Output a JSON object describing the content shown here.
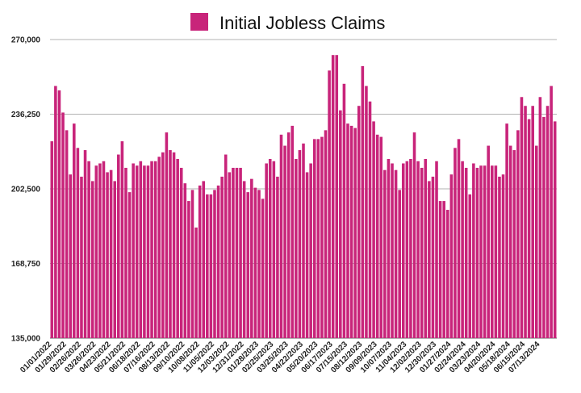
{
  "chart_data": {
    "type": "bar",
    "title": "Initial Jobless Claims",
    "legend": {
      "position": "top",
      "entries": [
        "Initial Jobless Claims"
      ]
    },
    "series": [
      {
        "name": "Initial Jobless Claims",
        "color": "#c8247a"
      }
    ],
    "ylim": [
      135000,
      270000
    ],
    "yticks": [
      "135,000",
      "168,750",
      "202,500",
      "236,250",
      "270,000"
    ],
    "ytick_values": [
      135000,
      168750,
      202500,
      236250,
      270000
    ],
    "grid": {
      "horizontal": true,
      "vertical": false
    },
    "x_tick_labels": [
      {
        "index": 0,
        "label": "01/01/2022"
      },
      {
        "index": 4,
        "label": "01/29/2022"
      },
      {
        "index": 8,
        "label": "02/26/2022"
      },
      {
        "index": 12,
        "label": "03/26/2022"
      },
      {
        "index": 16,
        "label": "04/23/2022"
      },
      {
        "index": 20,
        "label": "05/21/2022"
      },
      {
        "index": 24,
        "label": "06/18/2022"
      },
      {
        "index": 28,
        "label": "07/16/2022"
      },
      {
        "index": 32,
        "label": "08/13/2022"
      },
      {
        "index": 36,
        "label": "09/10/2022"
      },
      {
        "index": 40,
        "label": "10/08/2022"
      },
      {
        "index": 44,
        "label": "11/05/2022"
      },
      {
        "index": 48,
        "label": "12/03/2022"
      },
      {
        "index": 52,
        "label": "12/31/2022"
      },
      {
        "index": 56,
        "label": "01/28/2023"
      },
      {
        "index": 60,
        "label": "02/25/2023"
      },
      {
        "index": 64,
        "label": "03/25/2023"
      },
      {
        "index": 68,
        "label": "04/22/2023"
      },
      {
        "index": 72,
        "label": "05/20/2023"
      },
      {
        "index": 76,
        "label": "06/17/2023"
      },
      {
        "index": 80,
        "label": "07/15/2023"
      },
      {
        "index": 84,
        "label": "08/12/2023"
      },
      {
        "index": 88,
        "label": "09/09/2023"
      },
      {
        "index": 92,
        "label": "10/07/2023"
      },
      {
        "index": 96,
        "label": "11/04/2023"
      },
      {
        "index": 100,
        "label": "12/02/2023"
      },
      {
        "index": 104,
        "label": "12/30/2023"
      },
      {
        "index": 108,
        "label": "01/27/2024"
      },
      {
        "index": 112,
        "label": "02/24/2024"
      },
      {
        "index": 116,
        "label": "03/23/2024"
      },
      {
        "index": 120,
        "label": "04/20/2024"
      },
      {
        "index": 124,
        "label": "05/18/2024"
      },
      {
        "index": 128,
        "label": "06/15/2024"
      },
      {
        "index": 132,
        "label": "07/13/2024"
      }
    ],
    "values": [
      224000,
      249000,
      247000,
      237000,
      229000,
      209000,
      232000,
      221000,
      208000,
      220000,
      215000,
      206000,
      213000,
      214000,
      215000,
      210000,
      211000,
      206000,
      218000,
      224000,
      212000,
      201000,
      214000,
      213000,
      215000,
      213000,
      213000,
      215000,
      215000,
      217000,
      219000,
      228000,
      220000,
      219000,
      216000,
      212000,
      205000,
      197000,
      202000,
      185000,
      204000,
      206000,
      200000,
      200000,
      202000,
      204000,
      208000,
      218000,
      210000,
      212000,
      212000,
      212000,
      206000,
      201000,
      207000,
      203000,
      202000,
      198000,
      214000,
      216000,
      215000,
      208000,
      227000,
      222000,
      228000,
      231000,
      216000,
      220000,
      223000,
      210000,
      214000,
      225000,
      225000,
      226000,
      229000,
      256000,
      263000,
      263000,
      238000,
      250000,
      232000,
      231000,
      230000,
      240000,
      258000,
      249000,
      242000,
      233000,
      227000,
      226000,
      211000,
      216000,
      214000,
      211000,
      202000,
      214000,
      215000,
      216000,
      228000,
      215000,
      212000,
      216000,
      206000,
      208000,
      215000,
      197000,
      197000,
      193000,
      209000,
      221000,
      225000,
      215000,
      212000,
      200000,
      214000,
      212000,
      213000,
      213000,
      222000,
      213000,
      213000,
      208000,
      209000,
      232000,
      222000,
      220000,
      229000,
      244000,
      240000,
      234000,
      240000,
      222000,
      244000,
      235000,
      240000,
      249000,
      233000
    ]
  }
}
